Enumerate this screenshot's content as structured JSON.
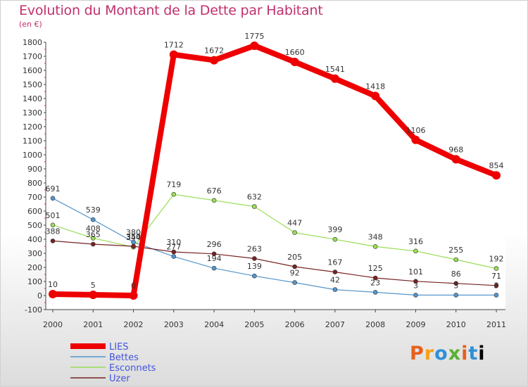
{
  "header": {
    "title": "Evolution du Montant de la Dette par Habitant",
    "subtitle": "(en €)"
  },
  "logo": {
    "text": "Proxiti"
  },
  "chart_data": {
    "type": "line",
    "x": [
      "2000",
      "2001",
      "2002",
      "2003",
      "2004",
      "2005",
      "2006",
      "2007",
      "2008",
      "2009",
      "2010",
      "2011"
    ],
    "ylim": [
      -100,
      1800
    ],
    "yticks": [
      -100,
      0,
      100,
      200,
      300,
      400,
      500,
      600,
      700,
      800,
      900,
      1000,
      1100,
      1200,
      1300,
      1400,
      1500,
      1600,
      1700,
      1800
    ],
    "grid": false,
    "legend_placement": "bottom-left",
    "series": [
      {
        "name": "LIES",
        "color": "#ee0000",
        "values": [
          10,
          5,
          0,
          1712,
          1672,
          1775,
          1660,
          1541,
          1418,
          1106,
          968,
          854
        ]
      },
      {
        "name": "Bettes",
        "color": "#5596cb",
        "values": [
          691,
          539,
          380,
          277,
          194,
          139,
          92,
          42,
          23,
          3,
          3,
          3
        ]
      },
      {
        "name": "Esconnets",
        "color": "#99dd55",
        "values": [
          501,
          408,
          344,
          719,
          676,
          632,
          447,
          399,
          348,
          316,
          255,
          192
        ]
      },
      {
        "name": "Uzer",
        "color": "#772222",
        "values": [
          388,
          365,
          350,
          310,
          296,
          263,
          205,
          167,
          125,
          101,
          86,
          71
        ]
      }
    ]
  }
}
